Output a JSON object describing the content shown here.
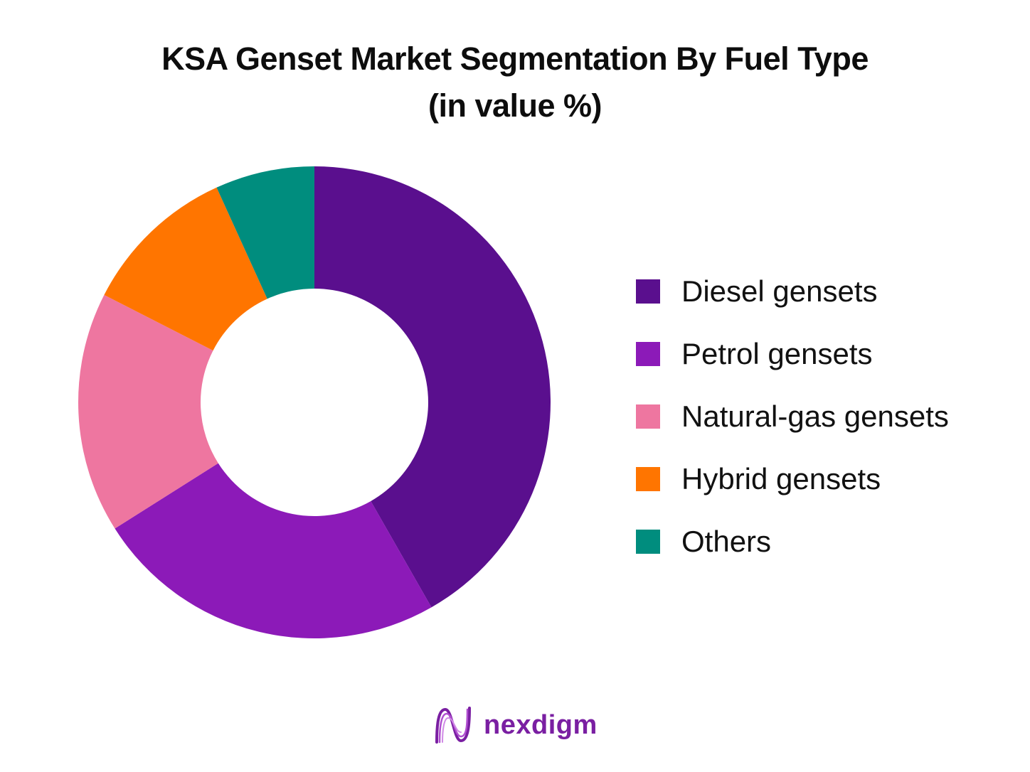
{
  "title_lines": [
    "KSA Genset Market Segmentation By Fuel Type",
    "(in value %)"
  ],
  "brand": {
    "name": "nexdigm",
    "logo_icon": "nexdigm-wave-logo",
    "color": "#7a1fa2"
  },
  "chart_data": {
    "type": "pie",
    "variant": "donut",
    "title": "KSA Genset Market Segmentation By Fuel Type (in value %)",
    "legend_position": "right",
    "categories": [
      "Diesel gensets",
      "Petrol gensets",
      "Natural-gas gensets",
      "Hybrid gensets",
      "Others"
    ],
    "values": [
      43,
      25,
      17,
      11,
      7
    ],
    "colors": [
      "#5a0f8e",
      "#8c1ab8",
      "#ee76a0",
      "#ff7500",
      "#008d7e"
    ]
  }
}
